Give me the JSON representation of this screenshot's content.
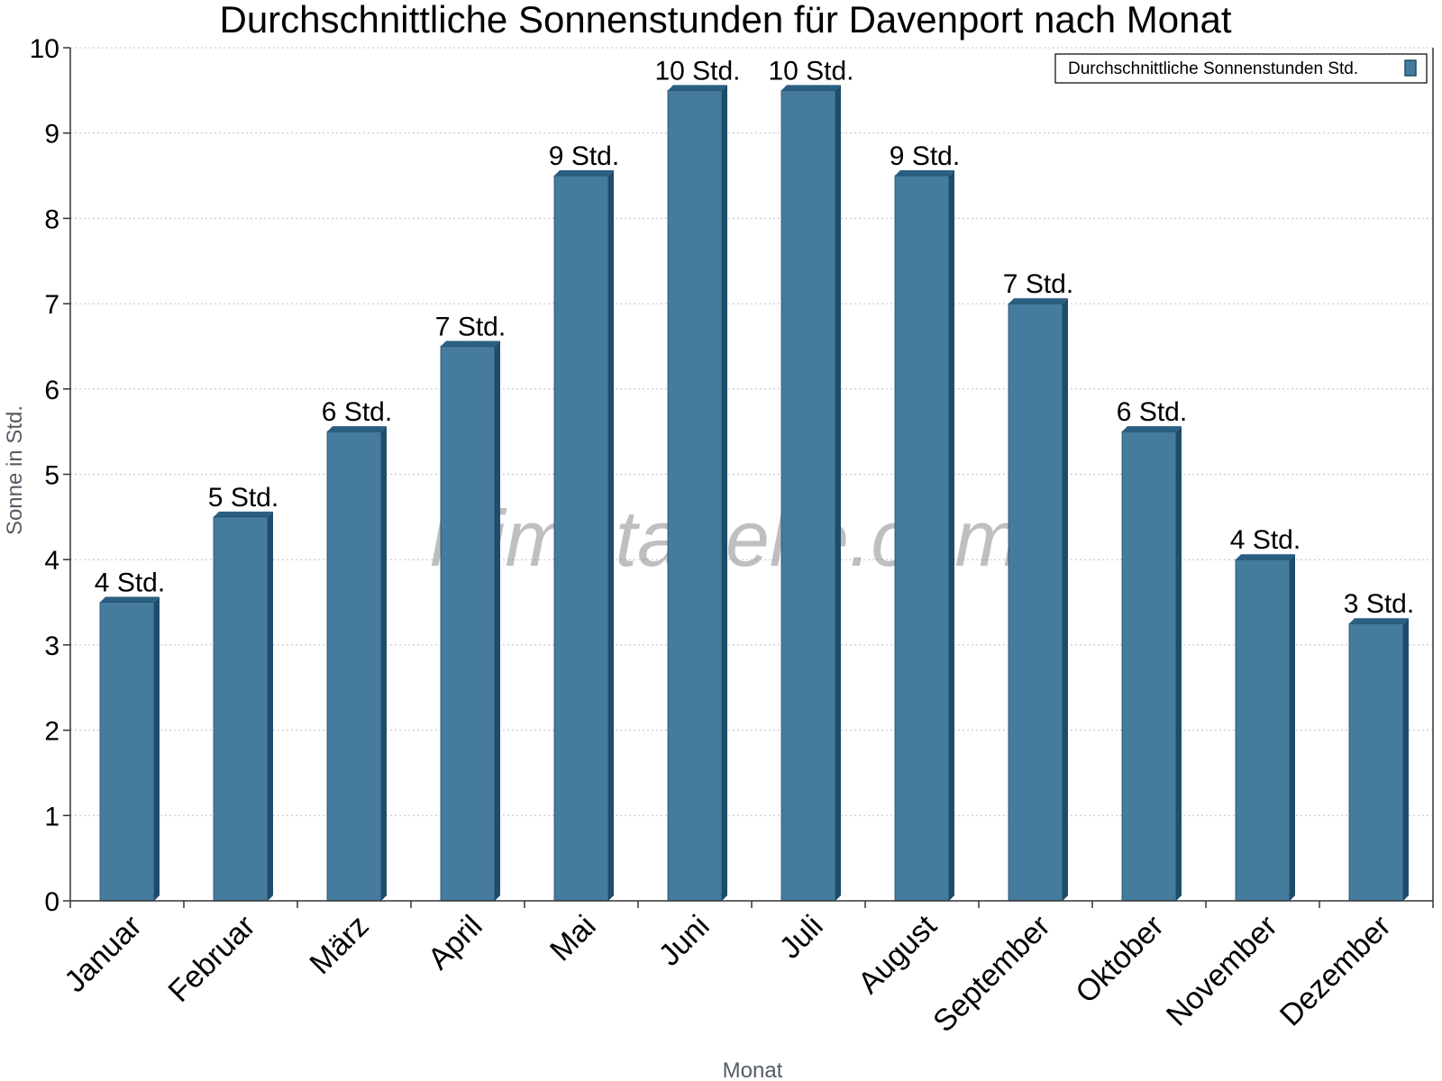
{
  "chart_data": {
    "type": "bar",
    "title": "Durchschnittliche Sonnenstunden für Davenport nach Monat",
    "xlabel": "Monat",
    "ylabel": "Sonne in Std.",
    "ylim": [
      0,
      10
    ],
    "yticks": [
      0,
      1,
      2,
      3,
      4,
      5,
      6,
      7,
      8,
      9,
      10
    ],
    "categories": [
      "Januar",
      "Februar",
      "März",
      "April",
      "Mai",
      "Juni",
      "Juli",
      "August",
      "September",
      "Oktober",
      "November",
      "Dezember"
    ],
    "series": [
      {
        "name": "Durchschnittliche Sonnenstunden Std.",
        "values": [
          3.5,
          4.5,
          5.5,
          6.5,
          8.5,
          9.5,
          9.5,
          8.5,
          7.0,
          5.5,
          4.0,
          3.25
        ],
        "labels": [
          "4 Std.",
          "5 Std.",
          "6 Std.",
          "7 Std.",
          "9 Std.",
          "10 Std.",
          "10 Std.",
          "9 Std.",
          "7 Std.",
          "6 Std.",
          "4 Std.",
          "3 Std."
        ]
      }
    ],
    "grid": true,
    "legend_position": "top-right",
    "colors": {
      "bar": "#457b9d",
      "bar_side": "#1e4d6b",
      "bar_top": "#2a5f82"
    },
    "watermark": "klimatabelle.com"
  }
}
